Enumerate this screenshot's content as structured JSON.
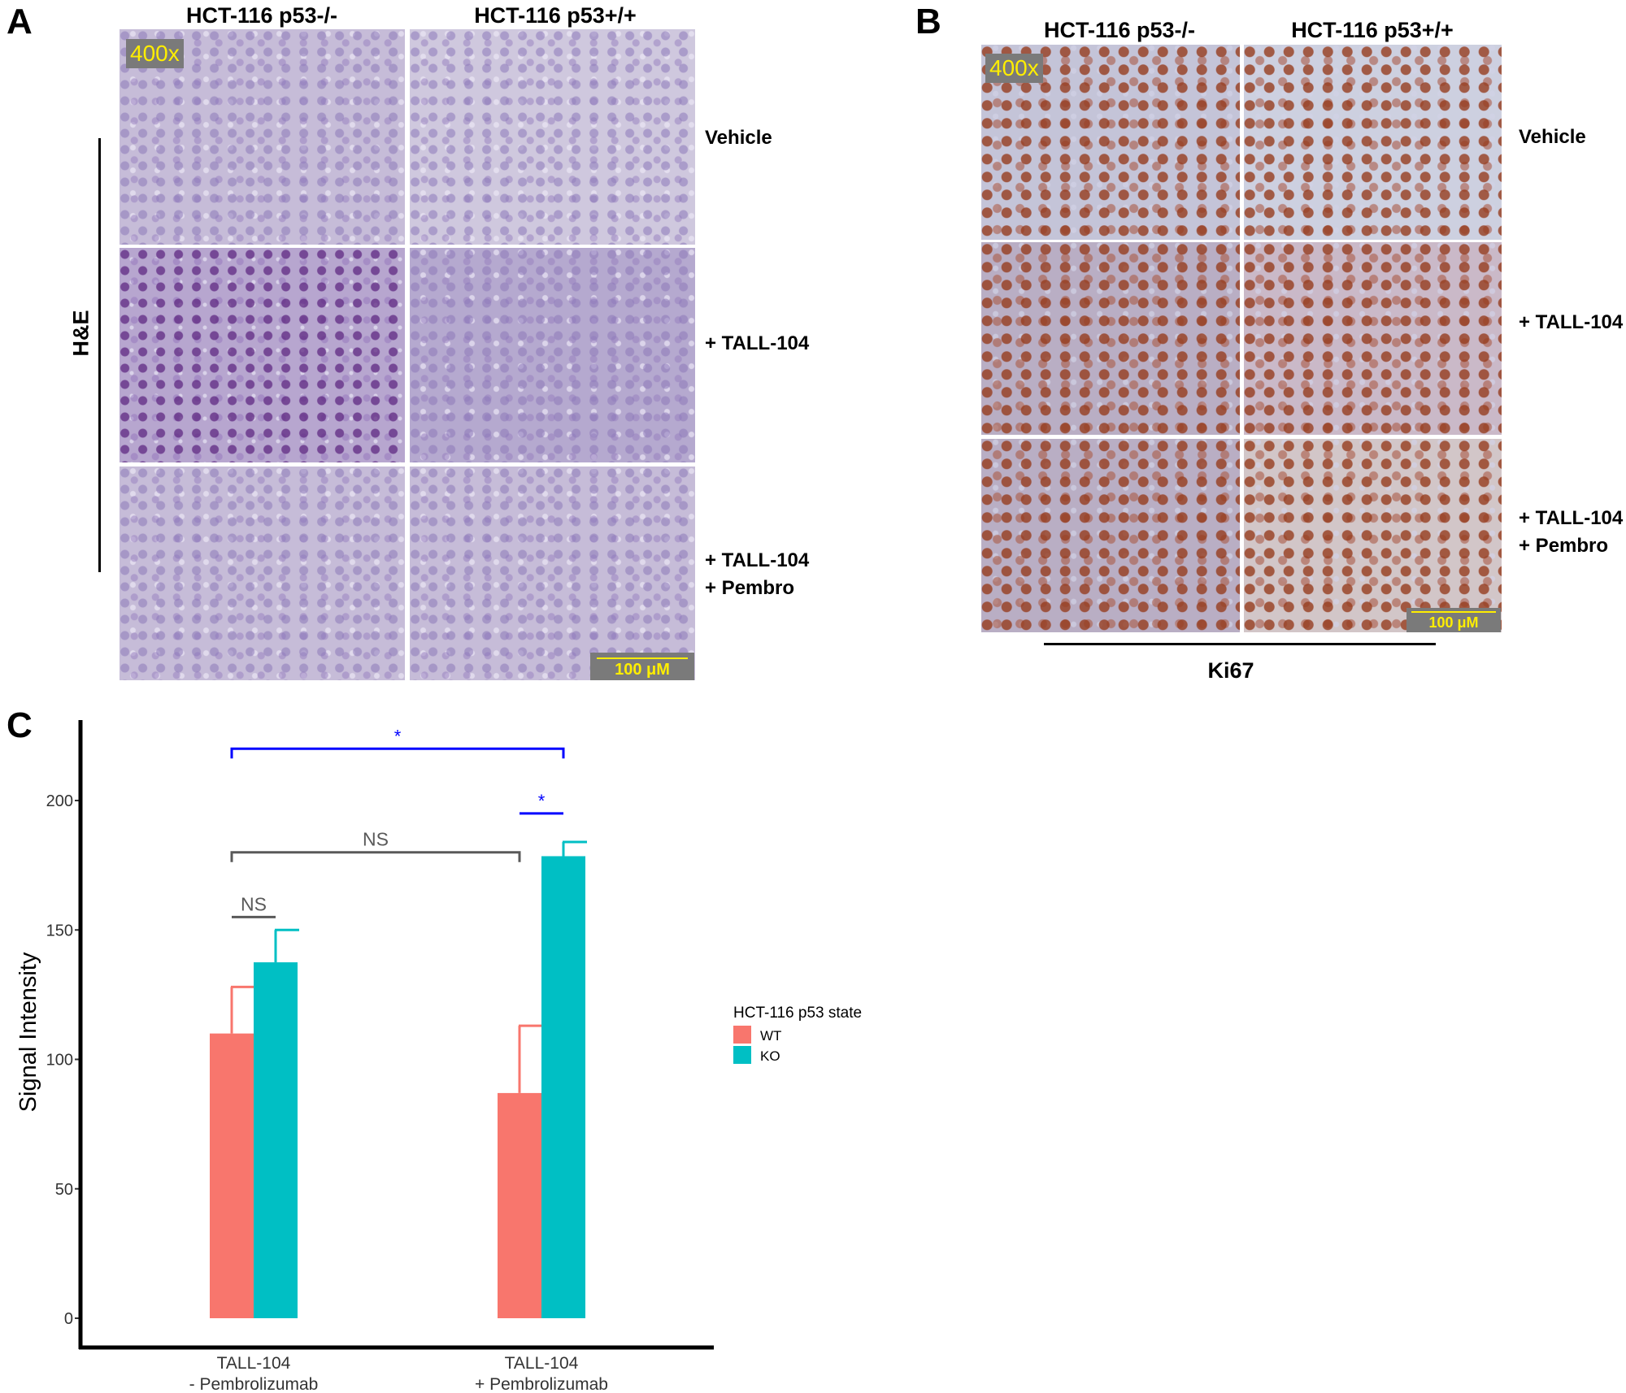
{
  "panel_a": {
    "letter": "A",
    "columns": [
      "HCT-116 p53-/-",
      "HCT-116 p53+/+"
    ],
    "rows": [
      {
        "lines": [
          "Vehicle"
        ]
      },
      {
        "lines": [
          "+ TALL-104"
        ]
      },
      {
        "lines": [
          "+ TALL-104",
          "+ Pembro"
        ]
      }
    ],
    "stain_label": "H&E",
    "magnification": "400x",
    "scale_bar": "100 μM"
  },
  "panel_b": {
    "letter": "B",
    "columns": [
      "HCT-116 p53-/-",
      "HCT-116 p53+/+"
    ],
    "rows": [
      {
        "lines": [
          "Vehicle"
        ]
      },
      {
        "lines": [
          "+ TALL-104"
        ]
      },
      {
        "lines": [
          "+ TALL-104",
          "+ Pembro"
        ]
      }
    ],
    "stain_label": "Ki67",
    "magnification": "400x",
    "scale_bar": "100 μM"
  },
  "panel_c": {
    "letter": "C"
  },
  "chart_data": {
    "type": "bar",
    "title": "",
    "xlabel": "",
    "ylabel": "Signal Intensity",
    "categories": [
      [
        "TALL-104",
        "- Pembrolizumab"
      ],
      [
        "TALL-104",
        "+ Pembrolizumab"
      ]
    ],
    "ylim": [
      -10,
      225
    ],
    "yticks": [
      0,
      50,
      100,
      150,
      200
    ],
    "grid": false,
    "legend": {
      "title": "HCT-116 p53 state",
      "placement": "right"
    },
    "series": [
      {
        "name": "WT",
        "color": "#F8766D",
        "values": [
          110,
          87
        ],
        "error_upper": [
          128,
          113
        ]
      },
      {
        "name": "KO",
        "color": "#00BFC4",
        "values": [
          137.5,
          178.5
        ],
        "error_upper": [
          150,
          184
        ]
      }
    ],
    "annotations": [
      {
        "label": "*",
        "color": "#0000FF",
        "from": "WT: TALL-104 - Pembrolizumab",
        "to": "KO: TALL-104 + Pembrolizumab",
        "y": 220
      },
      {
        "label": "*",
        "color": "#0000FF",
        "from": "WT: TALL-104 + Pembrolizumab",
        "to": "KO: TALL-104 + Pembrolizumab",
        "y": 195
      },
      {
        "label": "NS",
        "color": "#595959",
        "from": "WT: TALL-104 - Pembrolizumab",
        "to": "WT: TALL-104 + Pembrolizumab",
        "y": 180
      },
      {
        "label": "NS",
        "color": "#595959",
        "from": "WT: TALL-104 - Pembrolizumab",
        "to": "KO: TALL-104 - Pembrolizumab",
        "y": 155
      }
    ]
  }
}
